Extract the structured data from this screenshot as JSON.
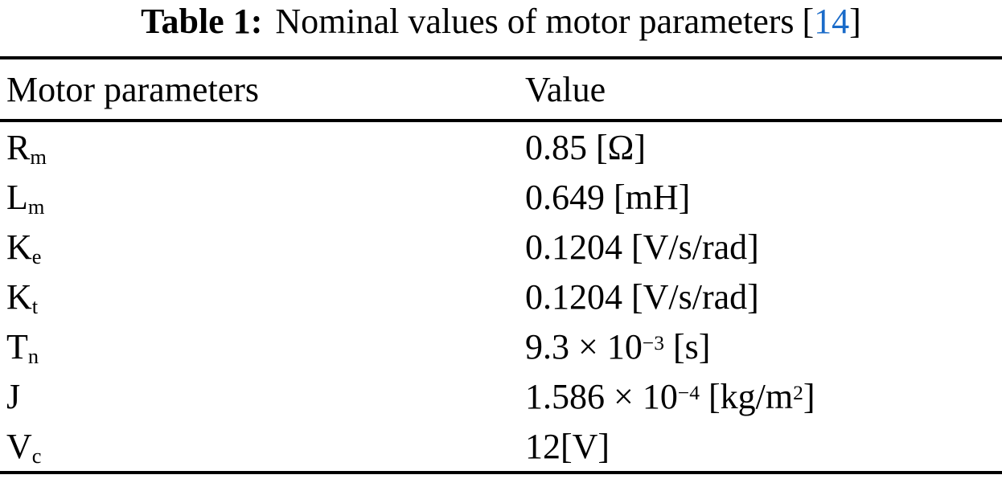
{
  "caption": {
    "label": "Table 1:",
    "text": "Nominal values of motor parameters",
    "citation": {
      "open": "[",
      "number": "14",
      "close": "]"
    }
  },
  "table": {
    "columns": [
      "Motor parameters",
      "Value"
    ],
    "rows": [
      {
        "param": {
          "base": "R",
          "sub": "m"
        },
        "value": [
          {
            "text": "0.85 [Ω]"
          }
        ]
      },
      {
        "param": {
          "base": "L",
          "sub": "m"
        },
        "value": [
          {
            "text": "0.649 [mH]"
          }
        ]
      },
      {
        "param": {
          "base": "K",
          "sub": "e"
        },
        "value": [
          {
            "text": "0.1204 [V/s/rad]"
          }
        ]
      },
      {
        "param": {
          "base": "K",
          "sub": "t"
        },
        "value": [
          {
            "text": "0.1204 [V/s/rad]"
          }
        ]
      },
      {
        "param": {
          "base": "T",
          "sub": "n"
        },
        "value": [
          {
            "text": "9.3 × 10"
          },
          {
            "sup": "−3"
          },
          {
            "text": " [s]"
          }
        ]
      },
      {
        "param": {
          "base": "J",
          "sub": ""
        },
        "value": [
          {
            "text": "1.586 × 10"
          },
          {
            "sup": "−4"
          },
          {
            "text": " [kg/m"
          },
          {
            "sup": "2"
          },
          {
            "text": "]"
          }
        ]
      },
      {
        "param": {
          "base": "V",
          "sub": "c"
        },
        "value": [
          {
            "text": "12[V]"
          }
        ]
      }
    ]
  },
  "colors": {
    "text": "#000000",
    "rule": "#000000",
    "background": "#ffffff",
    "citation_blue": "#1a6bc9"
  }
}
